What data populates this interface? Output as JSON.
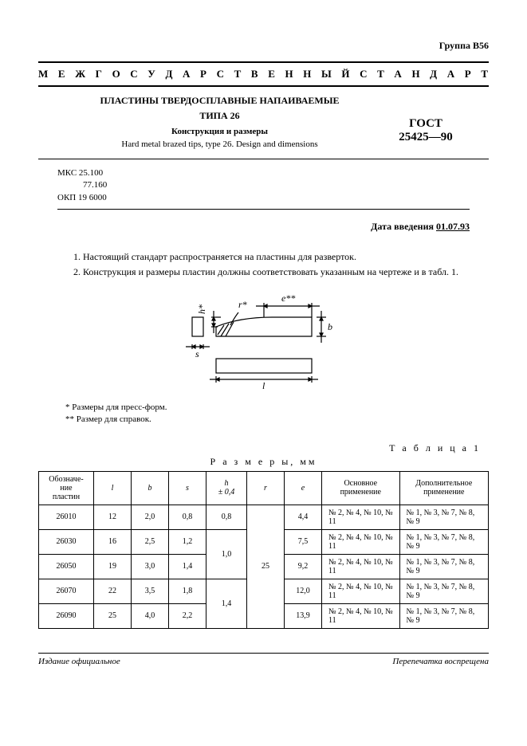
{
  "group": "Группа В56",
  "banner": "М Е Ж Г О С У Д А Р С Т В Е Н Н Ы Й   С Т А Н Д А Р Т",
  "header": {
    "title1": "ПЛАСТИНЫ ТВЕРДОСПЛАВНЫЕ НАПАИВАЕМЫЕ",
    "title2": "ТИПА 26",
    "sub": "Конструкция и размеры",
    "en": "Hard metal brazed tips, type 26. Design and dimensions",
    "gost1": "ГОСТ",
    "gost2": "25425—90"
  },
  "codes": {
    "l1": "МКС  25.100",
    "l2": "77.160",
    "l3": "ОКП  19 6000"
  },
  "intro_date_label": "Дата введения",
  "intro_date": "01.07.93",
  "paras": {
    "p1": "1. Настоящий стандарт распространяется на пластины для разверток.",
    "p2": "2. Конструкция и размеры пластин должны соответствовать указанным на чертеже и в табл. 1."
  },
  "drawing": {
    "labels": {
      "s": "s",
      "h": "h*",
      "r": "r*",
      "e": "e**",
      "b": "b",
      "l": "l"
    },
    "stroke": "#000000"
  },
  "footnotes": {
    "f1": "  * Размеры для пресс-форм.",
    "f2": "** Размер для справок."
  },
  "table": {
    "label": "Т а б л и ц а  1",
    "caption": "Р а з м е р ы,   мм",
    "headers": [
      "Обозначе-\nние\nпластин",
      "l",
      "b",
      "s",
      "h\n± 0,4",
      "r",
      "e",
      "Основное\nприменение",
      "Дополнительное\nприменение"
    ],
    "r_value": "25",
    "rows": [
      {
        "code": "26010",
        "l": "12",
        "b": "2,0",
        "s": "0,8",
        "h": "0,8",
        "e": "4,4",
        "main": "№ 2, № 4, № 10, № 11",
        "add": "№ 1, № 3, № 7, № 8, № 9"
      },
      {
        "code": "26030",
        "l": "16",
        "b": "2,5",
        "s": "1,2",
        "h": "1,0",
        "e": "7,5",
        "main": "№ 2, № 4, № 10, № 11",
        "add": "№ 1, № 3, № 7, № 8, № 9"
      },
      {
        "code": "26050",
        "l": "19",
        "b": "3,0",
        "s": "1,4",
        "h": "",
        "e": "9,2",
        "main": "№ 2, № 4, № 10, № 11",
        "add": "№ 1, № 3, № 7, № 8, № 9"
      },
      {
        "code": "26070",
        "l": "22",
        "b": "3,5",
        "s": "1,8",
        "h": "1,4",
        "e": "12,0",
        "main": "№ 2, № 4, № 10, № 11",
        "add": "№ 1, № 3, № 7, № 8, № 9"
      },
      {
        "code": "26090",
        "l": "25",
        "b": "4,0",
        "s": "2,2",
        "h": "",
        "e": "13,9",
        "main": "№ 2, № 4, № 10, № 11",
        "add": "№ 1, № 3, № 7, № 8, № 9"
      }
    ]
  },
  "footer": {
    "left": "Издание официальное",
    "right": "Перепечатка воспрещена"
  }
}
